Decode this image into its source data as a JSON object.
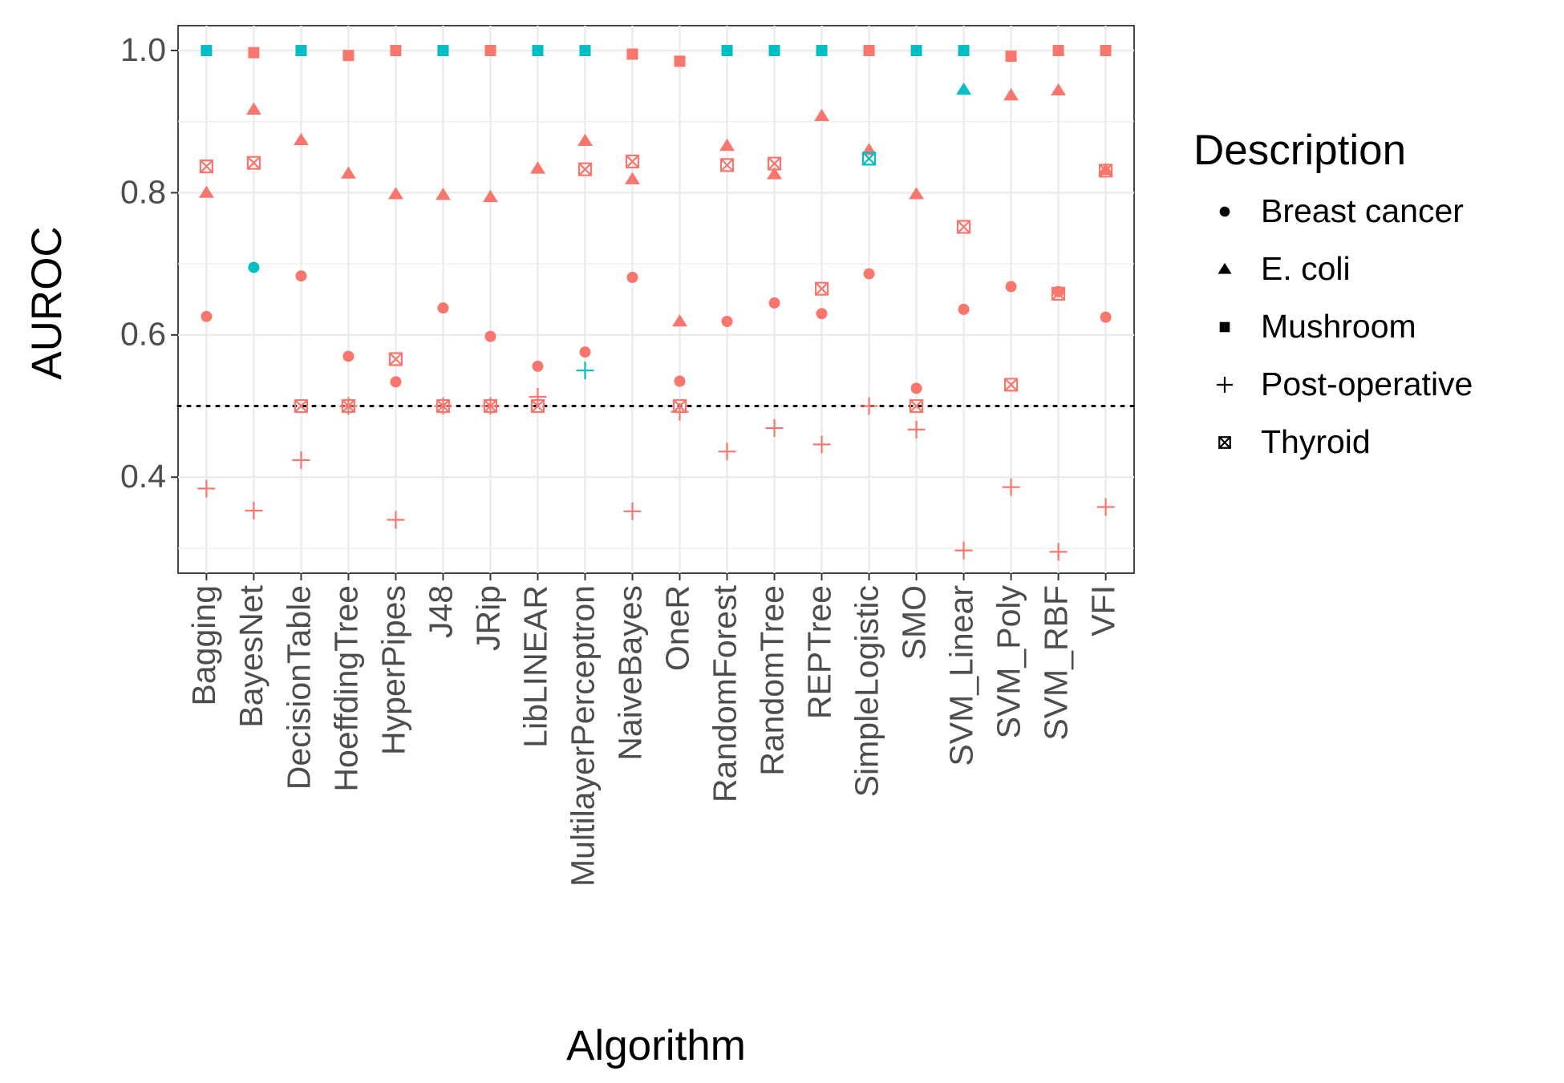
{
  "chart_data": {
    "type": "scatter",
    "xlabel": "Algorithm",
    "ylabel": "AUROC",
    "categories": [
      "Bagging",
      "BayesNet",
      "DecisionTable",
      "HoeffdingTree",
      "HyperPipes",
      "J48",
      "JRip",
      "LibLINEAR",
      "MultilayerPerceptron",
      "NaiveBayes",
      "OneR",
      "RandomForest",
      "RandomTree",
      "REPTree",
      "SimpleLogistic",
      "SMO",
      "SVM_Linear",
      "SVM_Poly",
      "SVM_RBF",
      "VFI"
    ],
    "ylim": [
      0.265,
      1.035
    ],
    "yticks": [
      0.4,
      0.6,
      0.8,
      1.0
    ],
    "ytick_labels": [
      "0.4",
      "0.6",
      "0.8",
      "1.0"
    ],
    "reference_line": 0.5,
    "grid": true,
    "legend": {
      "title": "Description",
      "position": "right",
      "entries": [
        {
          "label": "Breast cancer",
          "shape": "circle"
        },
        {
          "label": "E. coli",
          "shape": "triangle"
        },
        {
          "label": "Mushroom",
          "shape": "square"
        },
        {
          "label": "Post-operative",
          "shape": "plus"
        },
        {
          "label": "Thyroid",
          "shape": "boxx"
        }
      ]
    },
    "colors": {
      "red": "#F8766D",
      "teal": "#00BFC4"
    },
    "series": [
      {
        "name": "Breast cancer",
        "shape": "circle",
        "values": [
          0.626,
          0.695,
          0.683,
          0.57,
          0.534,
          0.638,
          0.598,
          0.556,
          0.576,
          0.681,
          0.535,
          0.619,
          0.645,
          0.63,
          0.686,
          0.525,
          0.636,
          0.668,
          0.661,
          0.625
        ],
        "colors": [
          "red",
          "teal",
          "red",
          "red",
          "red",
          "red",
          "red",
          "red",
          "red",
          "red",
          "red",
          "red",
          "red",
          "red",
          "red",
          "red",
          "red",
          "red",
          "red",
          "red"
        ]
      },
      {
        "name": "E. coli",
        "shape": "triangle",
        "values": [
          0.8,
          0.917,
          0.874,
          0.827,
          0.798,
          0.797,
          0.794,
          0.834,
          0.873,
          0.819,
          0.619,
          0.866,
          0.826,
          0.908,
          0.86,
          0.798,
          0.945,
          0.937,
          0.944,
          0.832
        ],
        "colors": [
          "red",
          "red",
          "red",
          "red",
          "red",
          "red",
          "red",
          "red",
          "red",
          "red",
          "red",
          "red",
          "red",
          "red",
          "red",
          "red",
          "teal",
          "red",
          "red",
          "red"
        ]
      },
      {
        "name": "Mushroom",
        "shape": "square",
        "values": [
          1.0,
          0.997,
          1.0,
          0.993,
          1.0,
          1.0,
          1.0,
          1.0,
          1.0,
          0.995,
          0.985,
          1.0,
          1.0,
          1.0,
          1.0,
          1.0,
          1.0,
          0.992,
          1.0,
          1.0
        ],
        "colors": [
          "teal",
          "red",
          "teal",
          "red",
          "red",
          "teal",
          "red",
          "teal",
          "teal",
          "red",
          "red",
          "teal",
          "teal",
          "teal",
          "red",
          "teal",
          "teal",
          "red",
          "red",
          "red"
        ]
      },
      {
        "name": "Post-operative",
        "shape": "plus",
        "values": [
          0.384,
          0.353,
          0.424,
          0.5,
          0.34,
          0.5,
          0.5,
          0.513,
          0.55,
          0.352,
          0.492,
          0.436,
          0.469,
          0.446,
          0.5,
          0.467,
          0.297,
          0.386,
          0.295,
          0.358
        ],
        "colors": [
          "red",
          "red",
          "red",
          "red",
          "red",
          "red",
          "red",
          "red",
          "teal",
          "red",
          "red",
          "red",
          "red",
          "red",
          "red",
          "red",
          "red",
          "red",
          "red",
          "red"
        ]
      },
      {
        "name": "Thyroid",
        "shape": "boxx",
        "values": [
          0.837,
          0.842,
          0.5,
          0.5,
          0.566,
          0.5,
          0.5,
          0.5,
          0.833,
          0.844,
          0.5,
          0.839,
          0.841,
          0.665,
          0.848,
          0.5,
          0.752,
          0.53,
          0.658,
          0.831
        ],
        "colors": [
          "red",
          "red",
          "red",
          "red",
          "red",
          "red",
          "red",
          "red",
          "red",
          "red",
          "red",
          "red",
          "red",
          "red",
          "teal",
          "red",
          "red",
          "red",
          "red",
          "red"
        ]
      }
    ]
  }
}
